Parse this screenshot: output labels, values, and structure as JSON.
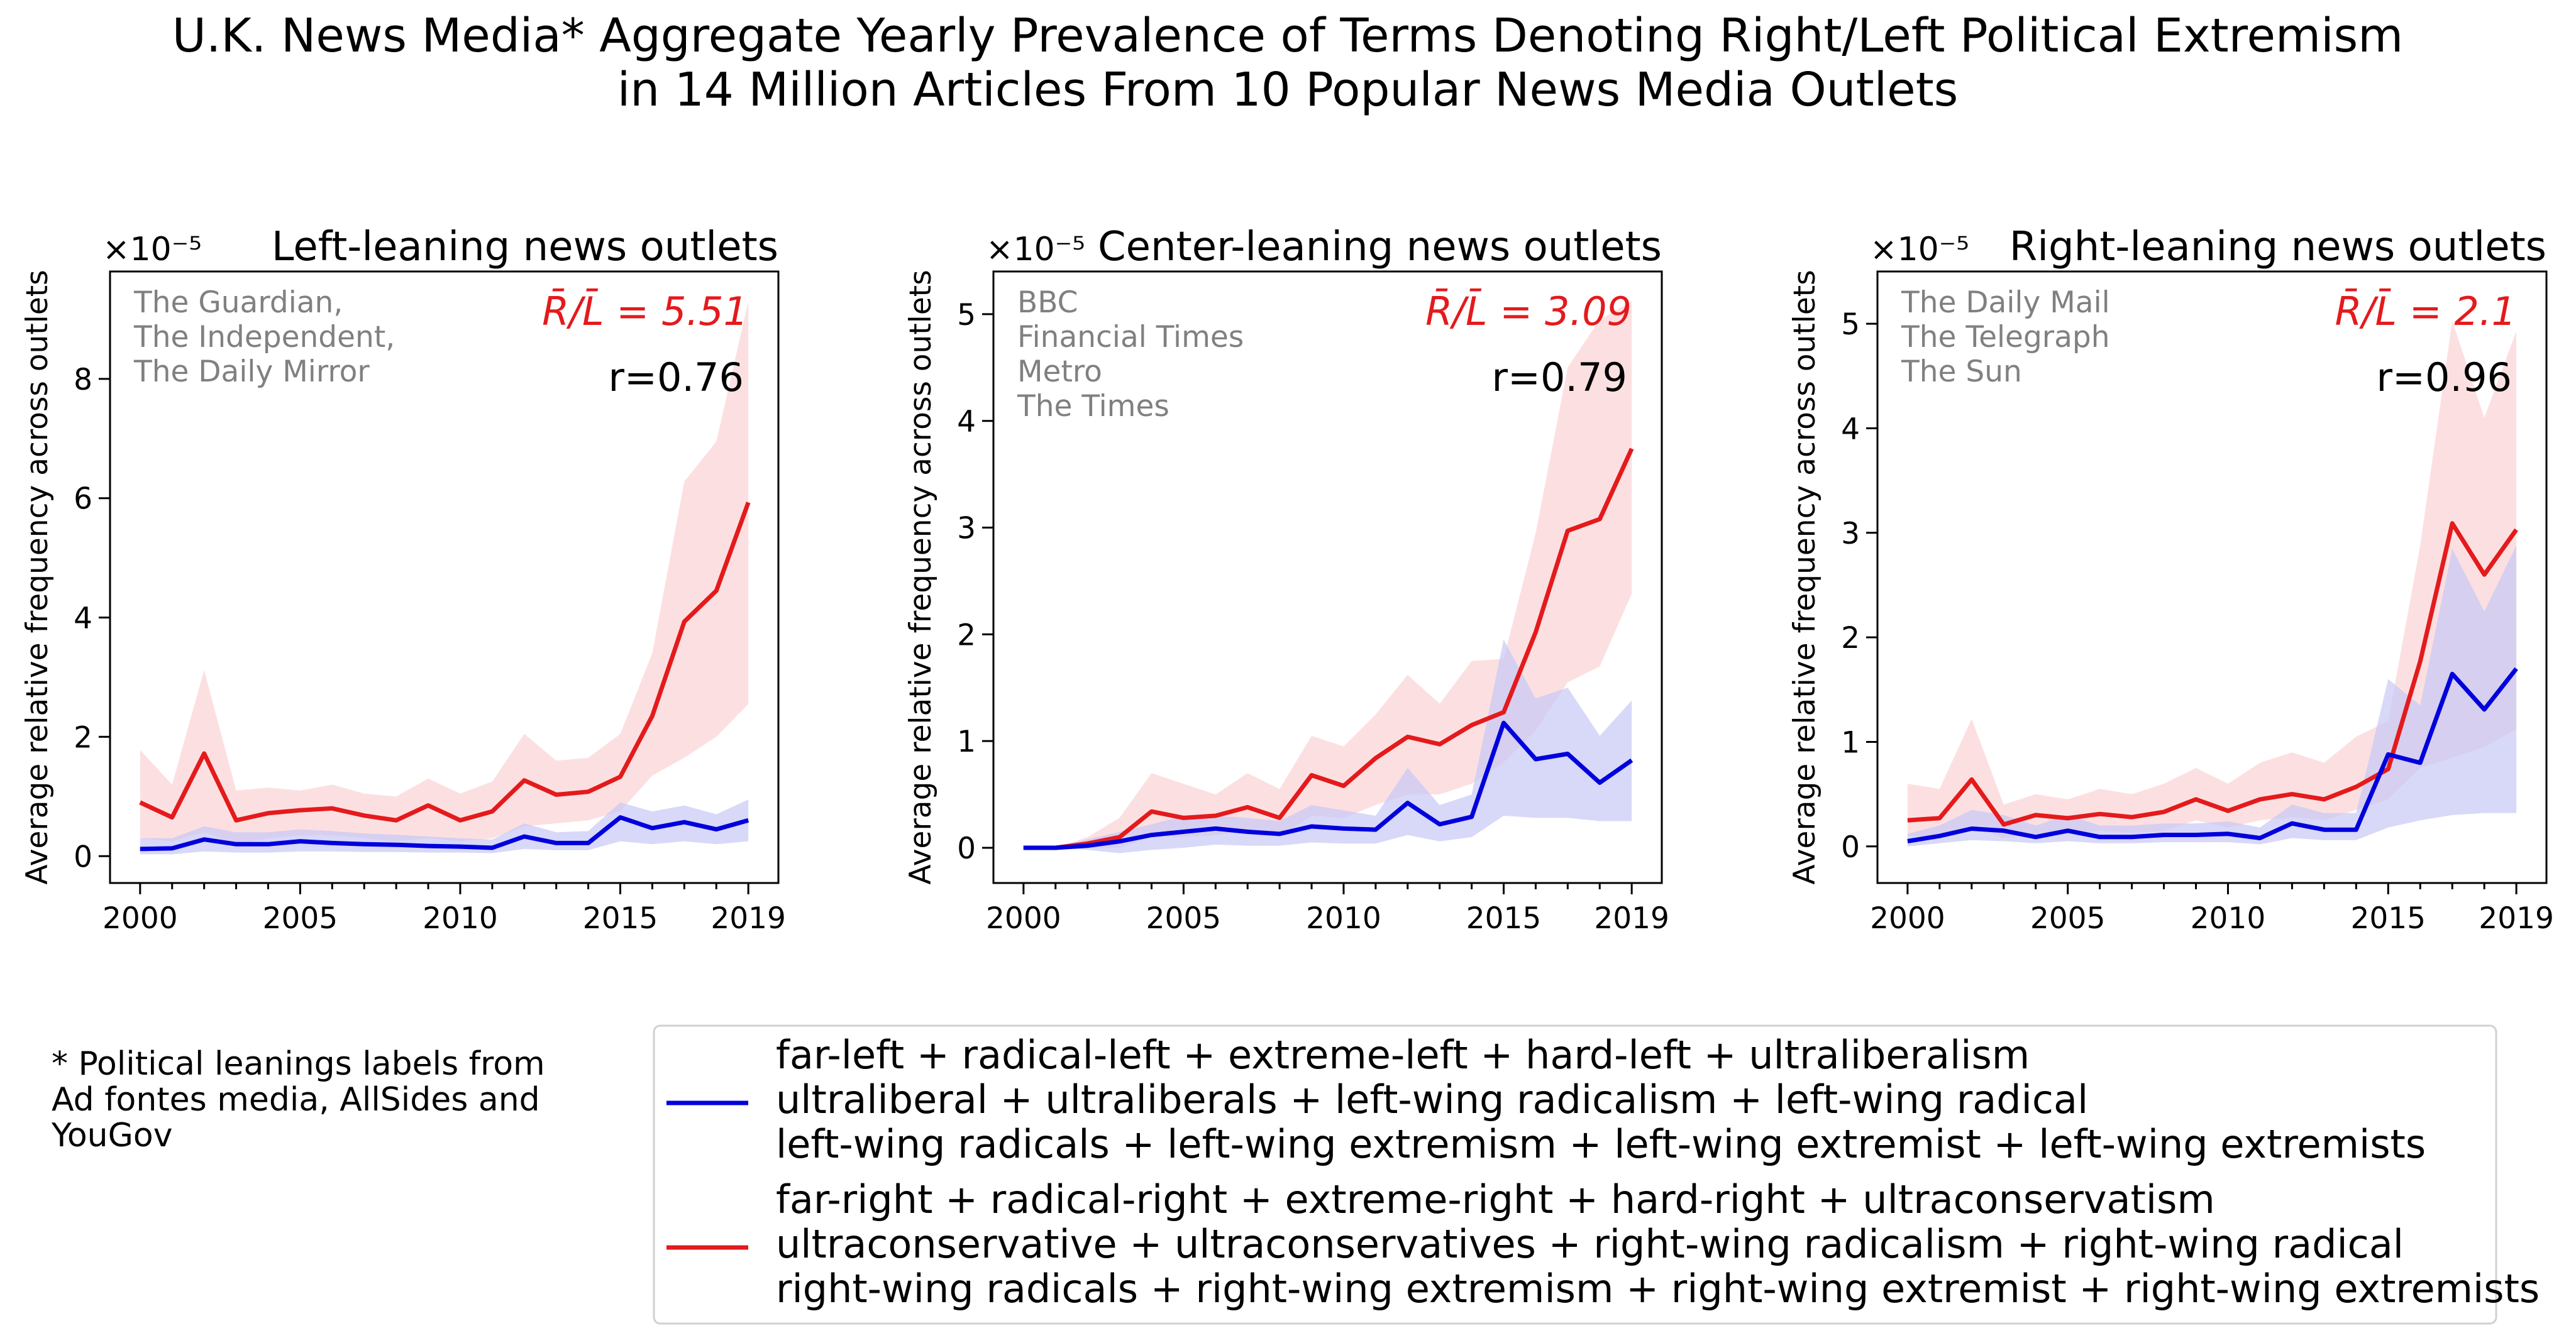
{
  "figure": {
    "title_lines": [
      "U.K. News Media* Aggregate Yearly Prevalence of Terms Denoting Right/Left Political Extremism",
      "in 14 Million Articles From 10 Popular News Media Outlets"
    ],
    "footnote_lines": [
      "* Political leanings labels from",
      "Ad fontes media, AllSides and",
      "YouGov"
    ],
    "legend": [
      {
        "color": "#0000dd",
        "lines": [
          "far-left + radical-left + extreme-left + hard-left + ultraliberalism",
          "ultraliberal + ultraliberals + left-wing radicalism + left-wing radical",
          "left-wing radicals + left-wing extremism + left-wing extremist + left-wing extremists"
        ]
      },
      {
        "color": "#e41a1c",
        "lines": [
          "far-right + radical-right + extreme-right + hard-right + ultraconservatism",
          "ultraconservative + ultraconservatives + right-wing radicalism + right-wing radical",
          "right-wing radicals + right-wing extremism + right-wing extremist + right-wing extremists"
        ]
      }
    ],
    "colors": {
      "left": "#0000dd",
      "right": "#e41a1c",
      "left_band": "#c8c8f5",
      "right_band": "#fbd3d4",
      "note": "#808080"
    }
  },
  "chart_data": [
    {
      "type": "line",
      "title": "Left-leaning news outlets",
      "ylabel": "Average relative frequency across outlets",
      "exponent_label": "×10⁻⁵",
      "outlets": [
        "The Guardian,",
        "The Independent,",
        "The Daily Mirror"
      ],
      "ratio_label": "R̄/L̄ = 5.51",
      "r_label": "r=0.76",
      "x": [
        2000,
        2001,
        2002,
        2003,
        2004,
        2005,
        2006,
        2007,
        2008,
        2009,
        2010,
        2011,
        2012,
        2013,
        2014,
        2015,
        2016,
        2017,
        2018,
        2019
      ],
      "xticks": [
        2000,
        2005,
        2010,
        2015,
        2019
      ],
      "ylim": [
        -0.45,
        9.8
      ],
      "yticks": [
        0,
        2,
        4,
        6,
        8
      ],
      "series": [
        {
          "name": "right",
          "values": [
            0.9,
            0.65,
            1.72,
            0.6,
            0.72,
            0.77,
            0.8,
            0.68,
            0.6,
            0.85,
            0.6,
            0.75,
            1.27,
            1.03,
            1.08,
            1.33,
            2.35,
            3.93,
            4.45,
            5.93
          ],
          "lower": [
            0.3,
            0.25,
            0.4,
            0.2,
            0.3,
            0.35,
            0.35,
            0.3,
            0.25,
            0.3,
            0.25,
            0.3,
            0.5,
            0.55,
            0.6,
            0.75,
            1.35,
            1.65,
            2.0,
            2.55
          ],
          "upper": [
            1.78,
            1.2,
            3.12,
            1.1,
            1.15,
            1.1,
            1.2,
            1.05,
            1.0,
            1.3,
            1.05,
            1.25,
            2.05,
            1.6,
            1.65,
            2.05,
            3.4,
            6.28,
            6.95,
            9.3
          ]
        },
        {
          "name": "left",
          "values": [
            0.12,
            0.13,
            0.28,
            0.2,
            0.2,
            0.25,
            0.22,
            0.2,
            0.19,
            0.17,
            0.16,
            0.14,
            0.33,
            0.22,
            0.22,
            0.65,
            0.47,
            0.57,
            0.45,
            0.6
          ],
          "lower": [
            0.03,
            0.03,
            0.08,
            0.06,
            0.06,
            0.08,
            0.08,
            0.07,
            0.07,
            0.06,
            0.06,
            0.05,
            0.12,
            0.1,
            0.1,
            0.25,
            0.2,
            0.25,
            0.2,
            0.25
          ],
          "upper": [
            0.3,
            0.3,
            0.5,
            0.4,
            0.4,
            0.45,
            0.42,
            0.38,
            0.36,
            0.33,
            0.3,
            0.28,
            0.55,
            0.4,
            0.42,
            0.9,
            0.75,
            0.85,
            0.7,
            0.95
          ]
        }
      ]
    },
    {
      "type": "line",
      "title": "Center-leaning news outlets",
      "ylabel": "Average relative frequency across outlets",
      "exponent_label": "×10⁻⁵",
      "outlets": [
        "BBC",
        "Financial Times",
        "Metro",
        "The Times"
      ],
      "ratio_label": "R̄/L̄ = 3.09",
      "r_label": "r=0.79",
      "x": [
        2000,
        2001,
        2002,
        2003,
        2004,
        2005,
        2006,
        2007,
        2008,
        2009,
        2010,
        2011,
        2012,
        2013,
        2014,
        2015,
        2016,
        2017,
        2018,
        2019
      ],
      "xticks": [
        2000,
        2005,
        2010,
        2015,
        2019
      ],
      "ylim": [
        -0.33,
        5.4
      ],
      "yticks": [
        0,
        1,
        2,
        3,
        4,
        5
      ],
      "series": [
        {
          "name": "right",
          "values": [
            0,
            0,
            0.04,
            0.1,
            0.34,
            0.28,
            0.3,
            0.38,
            0.28,
            0.68,
            0.58,
            0.84,
            1.04,
            0.97,
            1.15,
            1.27,
            2.02,
            2.97,
            3.08,
            3.74
          ],
          "lower": [
            0,
            0,
            0,
            0,
            0.1,
            0.1,
            0.12,
            0.15,
            0.1,
            0.3,
            0.28,
            0.4,
            0.5,
            0.5,
            0.6,
            0.8,
            1.1,
            1.55,
            1.7,
            2.38
          ],
          "upper": [
            0,
            0,
            0.1,
            0.28,
            0.7,
            0.6,
            0.5,
            0.7,
            0.55,
            1.05,
            0.95,
            1.25,
            1.62,
            1.35,
            1.75,
            1.77,
            2.95,
            4.5,
            4.95,
            5.12
          ]
        },
        {
          "name": "left",
          "values": [
            0,
            0,
            0.02,
            0.06,
            0.12,
            0.15,
            0.18,
            0.15,
            0.13,
            0.2,
            0.18,
            0.17,
            0.42,
            0.22,
            0.29,
            1.17,
            0.83,
            0.88,
            0.61,
            0.82
          ],
          "lower": [
            0,
            0,
            -0.02,
            -0.05,
            -0.02,
            0,
            0.03,
            0.02,
            0.02,
            0.05,
            0.04,
            0.04,
            0.12,
            0.06,
            0.1,
            0.3,
            0.28,
            0.28,
            0.25,
            0.25
          ],
          "upper": [
            0,
            0,
            0.08,
            0.15,
            0.22,
            0.3,
            0.3,
            0.28,
            0.25,
            0.4,
            0.35,
            0.3,
            0.75,
            0.4,
            0.5,
            1.95,
            1.4,
            1.5,
            1.05,
            1.38
          ]
        }
      ]
    },
    {
      "type": "line",
      "title": "Right-leaning news outlets",
      "ylabel": "Average relative frequency across outlets",
      "exponent_label": "×10⁻⁵",
      "outlets": [
        "The Daily Mail",
        "The Telegraph",
        "The Sun"
      ],
      "ratio_label": "R̄/L̄ = 2.1",
      "r_label": "r=0.96",
      "x": [
        2000,
        2001,
        2002,
        2003,
        2004,
        2005,
        2006,
        2007,
        2008,
        2009,
        2010,
        2011,
        2012,
        2013,
        2014,
        2015,
        2016,
        2017,
        2018,
        2019
      ],
      "xticks": [
        2000,
        2005,
        2010,
        2015,
        2019
      ],
      "ylim": [
        -0.35,
        5.5
      ],
      "yticks": [
        0,
        1,
        2,
        3,
        4,
        5
      ],
      "series": [
        {
          "name": "right",
          "values": [
            0.25,
            0.27,
            0.64,
            0.21,
            0.3,
            0.27,
            0.31,
            0.28,
            0.33,
            0.45,
            0.34,
            0.45,
            0.5,
            0.45,
            0.57,
            0.74,
            1.77,
            3.09,
            2.6,
            3.03
          ],
          "lower": [
            0.1,
            0.1,
            0.2,
            0.08,
            0.12,
            0.12,
            0.15,
            0.13,
            0.15,
            0.25,
            0.18,
            0.25,
            0.28,
            0.25,
            0.35,
            0.45,
            0.75,
            0.85,
            0.95,
            1.12
          ],
          "upper": [
            0.6,
            0.55,
            1.22,
            0.4,
            0.5,
            0.45,
            0.55,
            0.5,
            0.6,
            0.75,
            0.6,
            0.8,
            0.9,
            0.8,
            1.05,
            1.2,
            2.88,
            5.03,
            4.1,
            4.93
          ]
        },
        {
          "name": "left",
          "values": [
            0.05,
            0.1,
            0.17,
            0.15,
            0.09,
            0.15,
            0.09,
            0.09,
            0.11,
            0.11,
            0.12,
            0.08,
            0.22,
            0.16,
            0.16,
            0.88,
            0.8,
            1.65,
            1.31,
            1.7
          ],
          "lower": [
            0,
            0.03,
            0.06,
            0.05,
            0.03,
            0.05,
            0.03,
            0.03,
            0.04,
            0.04,
            0.04,
            0.02,
            0.08,
            0.06,
            0.06,
            0.18,
            0.25,
            0.3,
            0.32,
            0.32
          ],
          "upper": [
            0.12,
            0.2,
            0.35,
            0.3,
            0.2,
            0.3,
            0.2,
            0.2,
            0.22,
            0.22,
            0.24,
            0.18,
            0.4,
            0.32,
            0.32,
            1.6,
            1.35,
            2.85,
            2.25,
            2.88
          ]
        }
      ]
    }
  ]
}
